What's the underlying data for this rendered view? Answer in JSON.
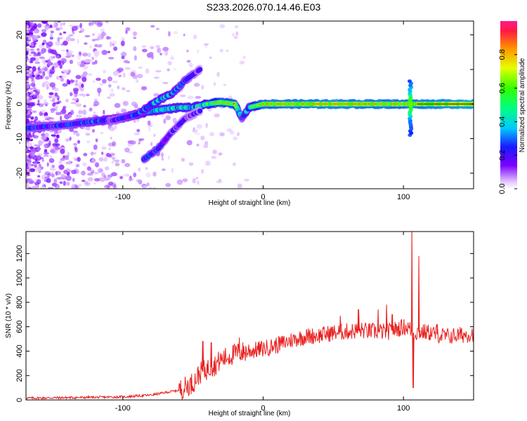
{
  "title": "S233.2026.070.14.46.E03",
  "chart_data": [
    {
      "type": "heatmap",
      "name": "spectrogram",
      "xlabel": "Height of straight line (km)",
      "ylabel": "Frequency (Hz)",
      "xlim": [
        -169,
        150
      ],
      "ylim": [
        -24.5,
        24
      ],
      "xticks": [
        -100,
        0,
        100
      ],
      "yticks": [
        -20,
        -10,
        0,
        10,
        20
      ],
      "colorbar": {
        "label": "Normalized spectral amplitude",
        "range": [
          0,
          1
        ],
        "ticks": [
          "0.0",
          "0.2",
          "0.4",
          "0.6",
          "0.8"
        ],
        "tick_values": [
          0.0,
          0.2,
          0.4,
          0.6,
          0.8
        ]
      },
      "ridges": [
        {
          "name": "main-trace",
          "points": [
            [
              -169,
              -7
            ],
            [
              -140,
              -6
            ],
            [
              -120,
              -5
            ],
            [
              -100,
              -4
            ],
            [
              -80,
              -2
            ],
            [
              -60,
              -1
            ],
            [
              -50,
              -1
            ],
            [
              -40,
              0
            ],
            [
              -30,
              0.5
            ],
            [
              -20,
              0
            ],
            [
              -15,
              -4
            ],
            [
              -10,
              -1
            ],
            [
              0,
              0
            ],
            [
              50,
              0
            ],
            [
              100,
              0
            ],
            [
              150,
              0
            ]
          ],
          "amplitude": [
            0.3,
            0.3,
            0.35,
            0.4,
            0.5,
            0.5,
            0.5,
            0.55,
            0.8,
            0.8,
            0.3,
            0.5,
            0.85,
            0.9,
            0.85,
            0.95
          ]
        },
        {
          "name": "rising-branch",
          "points": [
            [
              -110,
              -5
            ],
            [
              -90,
              -3
            ],
            [
              -75,
              1
            ],
            [
              -65,
              3
            ],
            [
              -55,
              7
            ],
            [
              -45,
              10
            ]
          ],
          "amplitude": [
            0.25,
            0.35,
            0.45,
            0.4,
            0.3,
            0.2
          ]
        },
        {
          "name": "lower-branch",
          "points": [
            [
              -85,
              -16
            ],
            [
              -75,
              -13
            ],
            [
              -65,
              -8
            ],
            [
              -55,
              -4
            ],
            [
              -45,
              -2
            ]
          ],
          "amplitude": [
            0.3,
            0.3,
            0.25,
            0.2,
            0.2
          ]
        },
        {
          "name": "vertical-feature-105km",
          "points": [
            [
              104,
              -8
            ],
            [
              105,
              0
            ],
            [
              106,
              6
            ]
          ],
          "amplitude": [
            0.3,
            0.5,
            0.35
          ]
        }
      ]
    },
    {
      "type": "line",
      "name": "snr",
      "xlabel": "Height of straight line (km)",
      "ylabel": "SNR (10 * v/v)",
      "xlim": [
        -169,
        150
      ],
      "ylim": [
        0,
        1380
      ],
      "xticks": [
        -100,
        0,
        100
      ],
      "yticks": [
        0,
        200,
        400,
        600,
        800,
        1000,
        1200
      ],
      "color": "#e8201e",
      "envelope": {
        "x": [
          -169,
          -130,
          -100,
          -80,
          -60,
          -50,
          -45,
          -40,
          -35,
          -30,
          -20,
          -10,
          0,
          10,
          20,
          30,
          40,
          50,
          60,
          70,
          80,
          90,
          95,
          100,
          104,
          106,
          108,
          110,
          120,
          130,
          140,
          150
        ],
        "y": [
          15,
          20,
          25,
          40,
          80,
          140,
          220,
          250,
          280,
          330,
          380,
          400,
          420,
          450,
          490,
          520,
          530,
          550,
          560,
          570,
          560,
          560,
          580,
          600,
          590,
          560,
          540,
          560,
          550,
          520,
          530,
          545
        ]
      },
      "spikes": [
        {
          "x": -43,
          "y": 480
        },
        {
          "x": -37,
          "y": 470
        },
        {
          "x": -17,
          "y": 510
        },
        {
          "x": 55,
          "y": 690
        },
        {
          "x": 68,
          "y": 740
        },
        {
          "x": 82,
          "y": 740
        },
        {
          "x": 88,
          "y": 780
        },
        {
          "x": 92,
          "y": 700
        },
        {
          "x": 106,
          "y": 1380
        },
        {
          "x": 107,
          "y": 100
        },
        {
          "x": 111,
          "y": 1180
        },
        {
          "x": 124,
          "y": 620
        }
      ]
    }
  ]
}
